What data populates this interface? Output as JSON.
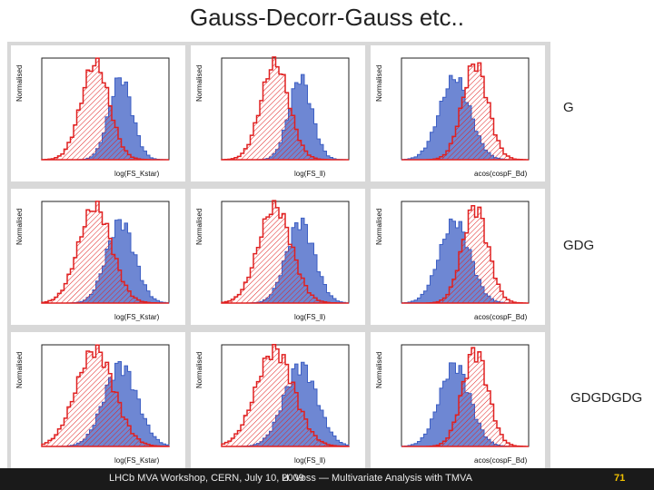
{
  "slide": {
    "title": "Gauss-Decorr-Gauss  etc..",
    "row_labels": [
      "G",
      "GDG",
      "GDGDGDG"
    ]
  },
  "footer": {
    "left": "LHCb MVA Workshop, CERN, July 10, 2009",
    "center_prefix": "H. Voss — Multivariate Analysis with ",
    "center_t": "T",
    "center_suffix": "MVA",
    "page": "71"
  },
  "colors": {
    "signal": "#3d5fc4",
    "background": "#e02020",
    "frame": "#222222"
  },
  "plots": [
    {
      "xlabel": "log(FS_Kstar)",
      "ylabel": "Normalised",
      "row": "G"
    },
    {
      "xlabel": "log(FS_ll)",
      "ylabel": "Normalised",
      "row": "G"
    },
    {
      "xlabel": "acos(cospF_Bd)",
      "ylabel": "Normalised",
      "row": "G"
    },
    {
      "xlabel": "log(FS_Kstar)",
      "ylabel": "Normalised",
      "row": "GDG"
    },
    {
      "xlabel": "log(FS_ll)",
      "ylabel": "Normalised",
      "row": "GDG"
    },
    {
      "xlabel": "acos(cospF_Bd)",
      "ylabel": "Normalised",
      "row": "GDG"
    },
    {
      "xlabel": "log(FS_Kstar)",
      "ylabel": "Normalised",
      "row": "GDGDGDG"
    },
    {
      "xlabel": "log(FS_ll)",
      "ylabel": "Normalised",
      "row": "GDGDGDG"
    },
    {
      "xlabel": "acos(cospF_Bd)",
      "ylabel": "Normalised",
      "row": "GDGDGDG"
    }
  ]
}
